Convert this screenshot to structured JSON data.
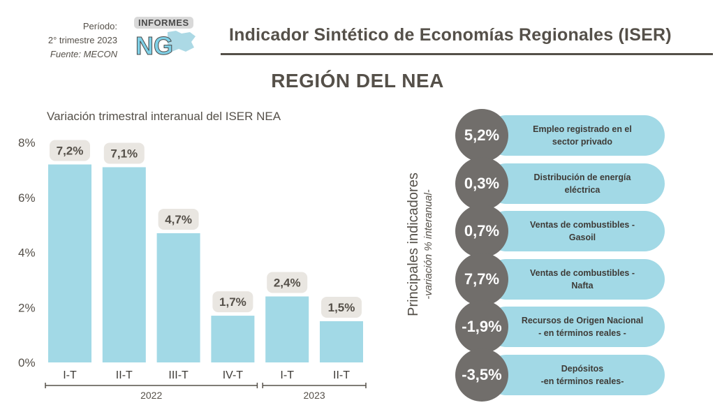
{
  "header": {
    "period_label": "Período:",
    "period_value": "2° trimestre 2023",
    "source": "Fuente: MECON",
    "logo_tag": "INFORMES",
    "logo_text": "NG",
    "title": "Indicador Sintético de Economías Regionales (ISER)"
  },
  "region_title": "REGIÓN DEL NEA",
  "colors": {
    "bar": "#a2d9e6",
    "label_bg": "#e9e6e1",
    "text": "#555049",
    "circle": "#716e6b"
  },
  "chart_data": {
    "type": "bar",
    "title": "Variación trimestral interanual del ISER NEA",
    "categories": [
      "I-T",
      "II-T",
      "III-T",
      "IV-T",
      "I-T",
      "II-T"
    ],
    "values": [
      7.2,
      7.1,
      4.7,
      1.7,
      2.4,
      1.5
    ],
    "data_labels": [
      "7,2%",
      "7,1%",
      "4,7%",
      "1,7%",
      "2,4%",
      "1,5%"
    ],
    "ylim": [
      0,
      8
    ],
    "yticks": [
      0,
      2,
      4,
      6,
      8
    ],
    "ytick_labels": [
      "0%",
      "2%",
      "4%",
      "6%",
      "8%"
    ],
    "year_groups": [
      {
        "label": "2022",
        "from": 0,
        "to": 3
      },
      {
        "label": "2023",
        "from": 4,
        "to": 5
      }
    ],
    "xlabel": "",
    "ylabel": ""
  },
  "indicators_panel": {
    "title": "Principales indicadores",
    "subtitle": "-variación % interanual-",
    "items": [
      {
        "value": "5,2%",
        "label": "Empleo registrado en el\nsector privado"
      },
      {
        "value": "0,3%",
        "label": "Distribución de energía\neléctrica"
      },
      {
        "value": "0,7%",
        "label": "Ventas de combustibles -\nGasoil"
      },
      {
        "value": "7,7%",
        "label": "Ventas de combustibles -\nNafta"
      },
      {
        "value": "-1,9%",
        "label": "Recursos de Origen Nacional\n- en términos reales -"
      },
      {
        "value": "-3,5%",
        "label": "Depósitos\n-en términos reales-"
      }
    ]
  }
}
